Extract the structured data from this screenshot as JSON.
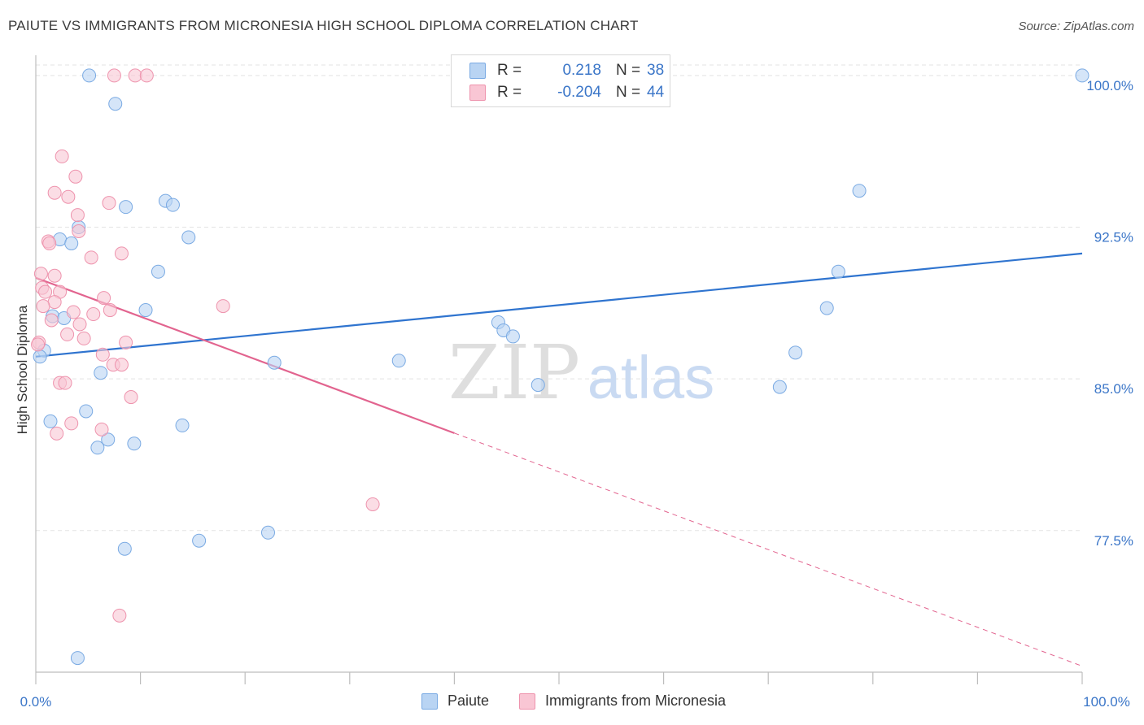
{
  "title": "PAIUTE VS IMMIGRANTS FROM MICRONESIA HIGH SCHOOL DIPLOMA CORRELATION CHART",
  "source": "Source: ZipAtlas.com",
  "colors": {
    "blue_fill": "#b9d4f3",
    "blue_stroke": "#7aaae3",
    "blue_line": "#2f74cf",
    "pink_fill": "#f9c6d4",
    "pink_stroke": "#ee93ad",
    "pink_line": "#e2648f",
    "tick_text": "#3b76c8",
    "grid": "#e3e3e3"
  },
  "legend": {
    "rows": [
      {
        "r_label": "R =",
        "r_value": "0.218",
        "n_label": "N =",
        "n_value": "38"
      },
      {
        "r_label": "R =",
        "r_value": "-0.204",
        "n_label": "N =",
        "n_value": "44"
      }
    ]
  },
  "watermark": {
    "zip": "ZIP",
    "atlas": "atlas"
  },
  "chart_data": {
    "type": "scatter",
    "title": "PAIUTE VS IMMIGRANTS FROM MICRONESIA HIGH SCHOOL DIPLOMA CORRELATION CHART",
    "xlabel": "",
    "ylabel": "High School Diploma",
    "xlim": [
      0,
      100
    ],
    "ylim": [
      70.5,
      101.0
    ],
    "x_tick_labels": [
      "0.0%",
      "100.0%"
    ],
    "y_ticks": [
      77.5,
      85.0,
      92.5,
      100.0
    ],
    "y_tick_labels": [
      "77.5%",
      "85.0%",
      "92.5%",
      "100.0%"
    ],
    "grid": true,
    "legend_position": "bottom-center",
    "series": [
      {
        "name": "Paiute",
        "color": "blue",
        "trend": {
          "x": [
            0,
            100
          ],
          "y": [
            86.1,
            91.2
          ],
          "dashed_from": null
        },
        "points": [
          {
            "x": 5.1,
            "y": 100.0
          },
          {
            "x": 7.6,
            "y": 98.6
          },
          {
            "x": 8.6,
            "y": 93.5
          },
          {
            "x": 12.4,
            "y": 93.8
          },
          {
            "x": 13.1,
            "y": 93.6
          },
          {
            "x": 4.1,
            "y": 92.5
          },
          {
            "x": 2.3,
            "y": 91.9
          },
          {
            "x": 3.4,
            "y": 91.7
          },
          {
            "x": 14.6,
            "y": 92.0
          },
          {
            "x": 11.7,
            "y": 90.3
          },
          {
            "x": 10.5,
            "y": 88.4
          },
          {
            "x": 1.6,
            "y": 88.1
          },
          {
            "x": 2.7,
            "y": 88.0
          },
          {
            "x": 0.8,
            "y": 86.4
          },
          {
            "x": 0.4,
            "y": 86.1
          },
          {
            "x": 6.2,
            "y": 85.3
          },
          {
            "x": 22.8,
            "y": 85.8
          },
          {
            "x": 34.7,
            "y": 85.9
          },
          {
            "x": 4.8,
            "y": 83.4
          },
          {
            "x": 1.4,
            "y": 82.9
          },
          {
            "x": 14.0,
            "y": 82.7
          },
          {
            "x": 6.9,
            "y": 82.0
          },
          {
            "x": 9.4,
            "y": 81.8
          },
          {
            "x": 5.9,
            "y": 81.6
          },
          {
            "x": 8.5,
            "y": 76.6
          },
          {
            "x": 15.6,
            "y": 77.0
          },
          {
            "x": 22.2,
            "y": 77.4
          },
          {
            "x": 4.0,
            "y": 71.2
          },
          {
            "x": 44.2,
            "y": 87.8
          },
          {
            "x": 44.7,
            "y": 87.4
          },
          {
            "x": 45.6,
            "y": 87.1
          },
          {
            "x": 48.0,
            "y": 84.7
          },
          {
            "x": 71.1,
            "y": 84.6
          },
          {
            "x": 72.6,
            "y": 86.3
          },
          {
            "x": 75.6,
            "y": 88.5
          },
          {
            "x": 76.7,
            "y": 90.3
          },
          {
            "x": 78.7,
            "y": 94.3
          },
          {
            "x": 100.0,
            "y": 100.0
          }
        ]
      },
      {
        "name": "Immigrants from Micronesia",
        "color": "pink",
        "trend": {
          "x": [
            0,
            100
          ],
          "y": [
            90.0,
            70.8
          ],
          "dashed_from": 40.0
        },
        "points": [
          {
            "x": 7.5,
            "y": 100.0
          },
          {
            "x": 9.5,
            "y": 100.0
          },
          {
            "x": 10.6,
            "y": 100.0
          },
          {
            "x": 2.5,
            "y": 96.0
          },
          {
            "x": 3.8,
            "y": 95.0
          },
          {
            "x": 1.8,
            "y": 94.2
          },
          {
            "x": 3.1,
            "y": 94.0
          },
          {
            "x": 7.0,
            "y": 93.7
          },
          {
            "x": 4.0,
            "y": 93.1
          },
          {
            "x": 4.1,
            "y": 92.3
          },
          {
            "x": 1.2,
            "y": 91.8
          },
          {
            "x": 1.3,
            "y": 91.7
          },
          {
            "x": 8.2,
            "y": 91.2
          },
          {
            "x": 5.3,
            "y": 91.0
          },
          {
            "x": 0.5,
            "y": 90.2
          },
          {
            "x": 1.8,
            "y": 90.1
          },
          {
            "x": 0.6,
            "y": 89.5
          },
          {
            "x": 0.9,
            "y": 89.3
          },
          {
            "x": 2.3,
            "y": 89.3
          },
          {
            "x": 6.5,
            "y": 89.0
          },
          {
            "x": 1.8,
            "y": 88.8
          },
          {
            "x": 0.7,
            "y": 88.6
          },
          {
            "x": 17.9,
            "y": 88.6
          },
          {
            "x": 7.1,
            "y": 88.4
          },
          {
            "x": 3.6,
            "y": 88.3
          },
          {
            "x": 5.5,
            "y": 88.2
          },
          {
            "x": 1.5,
            "y": 87.9
          },
          {
            "x": 4.2,
            "y": 87.7
          },
          {
            "x": 3.0,
            "y": 87.2
          },
          {
            "x": 4.6,
            "y": 87.0
          },
          {
            "x": 0.3,
            "y": 86.8
          },
          {
            "x": 8.6,
            "y": 86.8
          },
          {
            "x": 6.4,
            "y": 86.2
          },
          {
            "x": 7.4,
            "y": 85.7
          },
          {
            "x": 8.2,
            "y": 85.7
          },
          {
            "x": 2.3,
            "y": 84.8
          },
          {
            "x": 2.8,
            "y": 84.8
          },
          {
            "x": 9.1,
            "y": 84.1
          },
          {
            "x": 3.4,
            "y": 82.8
          },
          {
            "x": 6.3,
            "y": 82.5
          },
          {
            "x": 2.0,
            "y": 82.3
          },
          {
            "x": 32.2,
            "y": 78.8
          },
          {
            "x": 8.0,
            "y": 73.3
          },
          {
            "x": 0.2,
            "y": 86.7
          }
        ]
      }
    ]
  }
}
